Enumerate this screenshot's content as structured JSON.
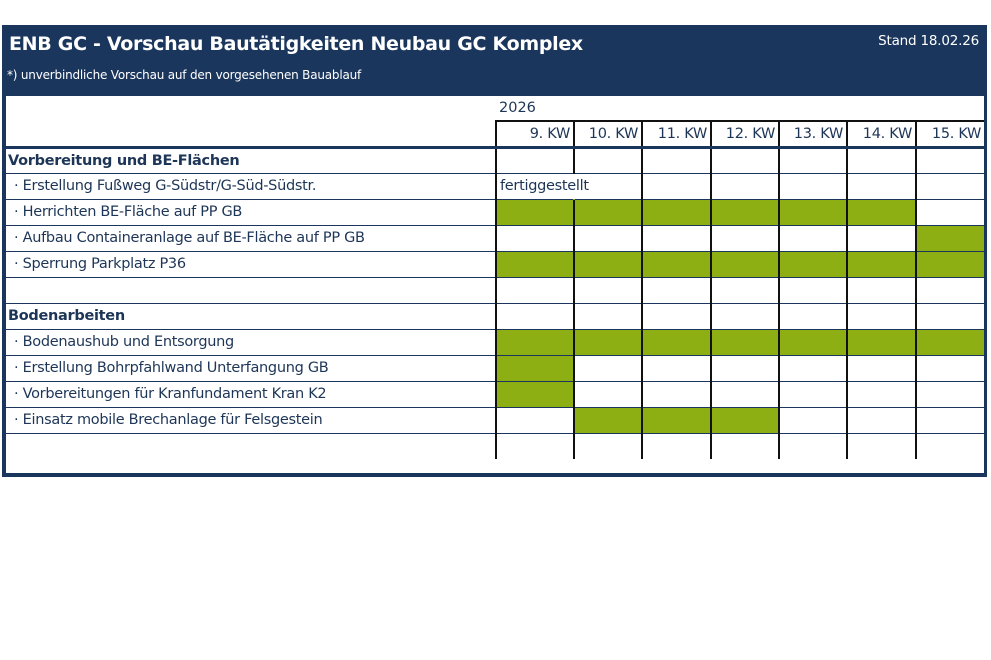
{
  "header": {
    "title": "ENB GC - Vorschau Bautätigkeiten Neubau GC Komplex",
    "subtitle": "*) unverbindliche Vorschau auf den vorgesehenen Bauablauf",
    "date": "Stand 18.02.26",
    "background_color": "#1b365d"
  },
  "schedule": {
    "year": "2026",
    "weeks": [
      "9. KW",
      "10. KW",
      "11. KW",
      "12. KW",
      "13. KW",
      "14. KW",
      "15. KW"
    ],
    "active_color": "#8daf14",
    "sections": [
      {
        "title": "Vorbereitung und BE-Flächen",
        "tasks": [
          {
            "label": "· Erstellung Fußweg G-Südstr/G-Süd-Südstr.",
            "note": "fertiggestellt",
            "weeks": [
              0,
              0,
              0,
              0,
              0,
              0,
              0
            ]
          },
          {
            "label": "· Herrichten BE-Fläche auf PP GB",
            "weeks": [
              1,
              1,
              1,
              1,
              1,
              1,
              0
            ]
          },
          {
            "label": "· Aufbau Containeranlage auf BE-Fläche auf PP GB",
            "weeks": [
              0,
              0,
              0,
              0,
              0,
              0,
              1
            ]
          },
          {
            "label": "· Sperrung Parkplatz P36",
            "weeks": [
              1,
              1,
              1,
              1,
              1,
              1,
              1
            ]
          }
        ]
      },
      {
        "title": "Bodenarbeiten",
        "tasks": [
          {
            "label": "· Bodenaushub und Entsorgung",
            "weeks": [
              1,
              1,
              1,
              1,
              1,
              1,
              1
            ]
          },
          {
            "label": "· Erstellung Bohrpfahlwand Unterfangung GB",
            "weeks": [
              1,
              0,
              0,
              0,
              0,
              0,
              0
            ]
          },
          {
            "label": "· Vorbereitungen für Kranfundament Kran K2",
            "weeks": [
              1,
              0,
              0,
              0,
              0,
              0,
              0
            ]
          },
          {
            "label": "· Einsatz mobile Brechanlage für Felsgestein",
            "weeks": [
              0,
              1,
              1,
              1,
              0,
              0,
              0
            ]
          }
        ]
      }
    ]
  }
}
